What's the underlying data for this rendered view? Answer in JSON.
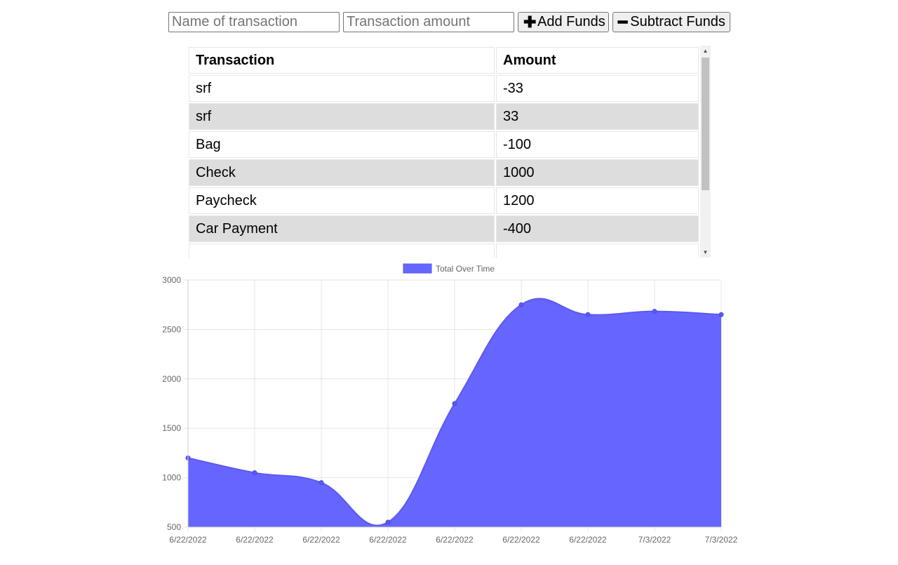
{
  "form": {
    "name_placeholder": "Name of transaction",
    "amount_placeholder": "Transaction amount",
    "add_label": "Add Funds",
    "subtract_label": "Subtract Funds",
    "add_icon": "plus-icon",
    "subtract_icon": "minus-icon"
  },
  "table": {
    "headers": [
      "Transaction",
      "Amount"
    ],
    "rows": [
      {
        "name": "srf",
        "amount": "-33"
      },
      {
        "name": "srf",
        "amount": "33"
      },
      {
        "name": "Bag",
        "amount": "-100"
      },
      {
        "name": "Check",
        "amount": "1000"
      },
      {
        "name": "Paycheck",
        "amount": "1200"
      },
      {
        "name": "Car Payment",
        "amount": "-400"
      },
      {
        "name": "",
        "amount": ""
      }
    ]
  },
  "chart_data": {
    "type": "area",
    "series": [
      {
        "name": "Total Over Time",
        "values": [
          1200,
          1050,
          950,
          550,
          1750,
          2750,
          2650,
          2683,
          2650
        ],
        "color": "#6666ff"
      }
    ],
    "categories": [
      "6/22/2022",
      "6/22/2022",
      "6/22/2022",
      "6/22/2022",
      "6/22/2022",
      "6/22/2022",
      "6/22/2022",
      "7/3/2022",
      "7/3/2022"
    ],
    "yticks": [
      "3000",
      "2500",
      "2000",
      "1500",
      "1000",
      "500"
    ],
    "ylim": [
      500,
      3000
    ],
    "grid": true,
    "legend": "top-center"
  }
}
